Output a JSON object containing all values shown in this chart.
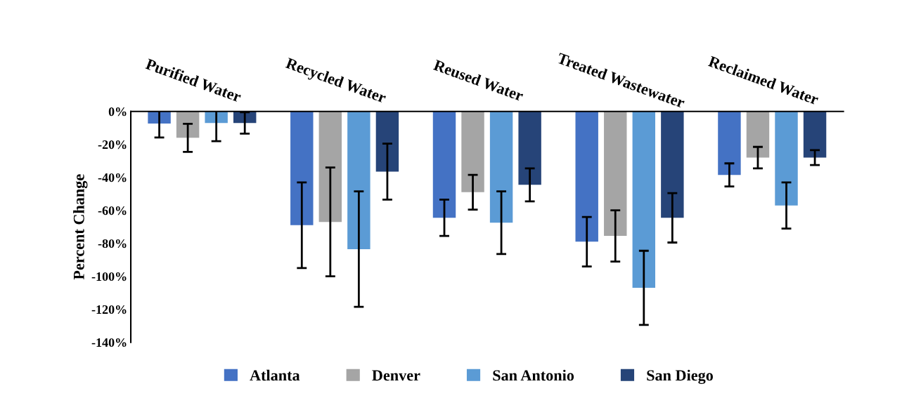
{
  "chart_data": {
    "type": "bar",
    "ylabel": "Percent Change",
    "categories": [
      "Purified Water",
      "Recycled Water",
      "Reused Water",
      "Treated Wastewater",
      "Reclaimed Water"
    ],
    "series": [
      {
        "name": "Atlanta",
        "color": "#4472c4",
        "values": [
          -7.3,
          -69,
          -64.5,
          -79,
          -38.5
        ],
        "errors": [
          8.5,
          26,
          11,
          15,
          7
        ]
      },
      {
        "name": "Denver",
        "color": "#a5a5a5",
        "values": [
          -16,
          -67,
          -49,
          -75.5,
          -28
        ],
        "errors": [
          8.5,
          33,
          10.5,
          15.5,
          6.5
        ]
      },
      {
        "name": "San Antonio",
        "color": "#5b9bd5",
        "values": [
          -7,
          -83.5,
          -67.5,
          -107,
          -57
        ],
        "errors": [
          11,
          35,
          19,
          22.5,
          14
        ]
      },
      {
        "name": "San Diego",
        "color": "#264478",
        "values": [
          -7,
          -36.5,
          -44.5,
          -64.5,
          -28
        ],
        "errors": [
          6.5,
          17,
          10,
          15,
          4.5
        ]
      }
    ],
    "ylim": [
      -140,
      0
    ],
    "yticks": [
      {
        "value": 0,
        "label": "0%"
      },
      {
        "value": -20,
        "label": "-20%"
      },
      {
        "value": -40,
        "label": "-40%"
      },
      {
        "value": -60,
        "label": "-60%"
      },
      {
        "value": -80,
        "label": "-80%"
      },
      {
        "value": -100,
        "label": "-100%"
      },
      {
        "value": -120,
        "label": "-120%"
      },
      {
        "value": -140,
        "label": "-140%"
      }
    ],
    "grid": false,
    "legend": "bottom"
  }
}
